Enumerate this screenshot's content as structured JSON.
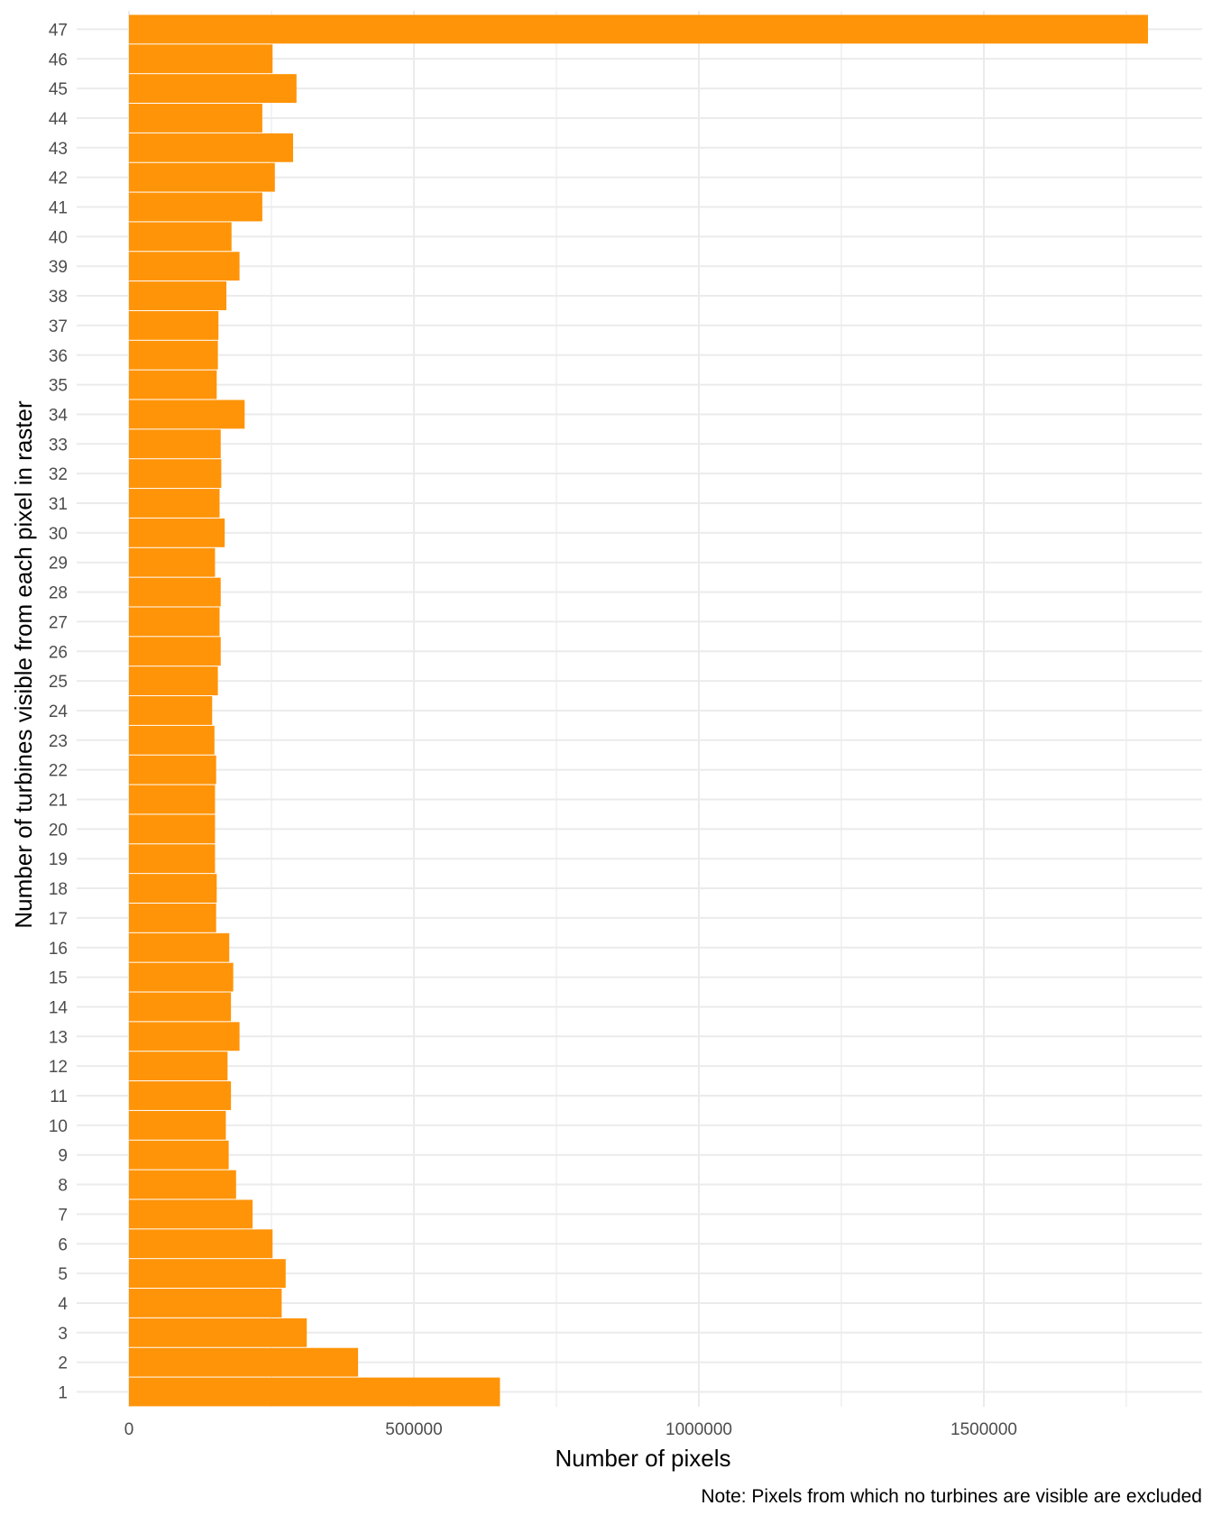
{
  "chart_data": {
    "type": "bar",
    "orientation": "horizontal",
    "title": "",
    "xlabel": "Number of pixels",
    "ylabel": "Number of turbines visible from each pixel in raster",
    "caption": "Note: Pixels from which no turbines are visible are excluded",
    "bar_color": "#FF9408",
    "grid_color": "#EBEBEB",
    "grid": true,
    "xlim": [
      0,
      1880000
    ],
    "x_ticks": [
      0,
      500000,
      1000000,
      1500000
    ],
    "x_tick_labels": [
      "0",
      "500000",
      "1000000",
      "1500000"
    ],
    "categories": [
      "1",
      "2",
      "3",
      "4",
      "5",
      "6",
      "7",
      "8",
      "9",
      "10",
      "11",
      "12",
      "13",
      "14",
      "15",
      "16",
      "17",
      "18",
      "19",
      "20",
      "21",
      "22",
      "23",
      "24",
      "25",
      "26",
      "27",
      "28",
      "29",
      "30",
      "31",
      "32",
      "33",
      "34",
      "35",
      "36",
      "37",
      "38",
      "39",
      "40",
      "41",
      "42",
      "43",
      "44",
      "45",
      "46",
      "47"
    ],
    "values": [
      651000,
      402000,
      312000,
      268000,
      275000,
      252000,
      217000,
      188000,
      175000,
      170000,
      179000,
      173000,
      194000,
      179000,
      183000,
      176000,
      153000,
      154000,
      151000,
      151000,
      151000,
      153000,
      150000,
      146000,
      156000,
      161000,
      159000,
      161000,
      151000,
      168000,
      159000,
      162000,
      161000,
      203000,
      154000,
      156000,
      157000,
      171000,
      194000,
      180000,
      234000,
      256000,
      288000,
      234000,
      294000,
      252000,
      1788000
    ]
  }
}
